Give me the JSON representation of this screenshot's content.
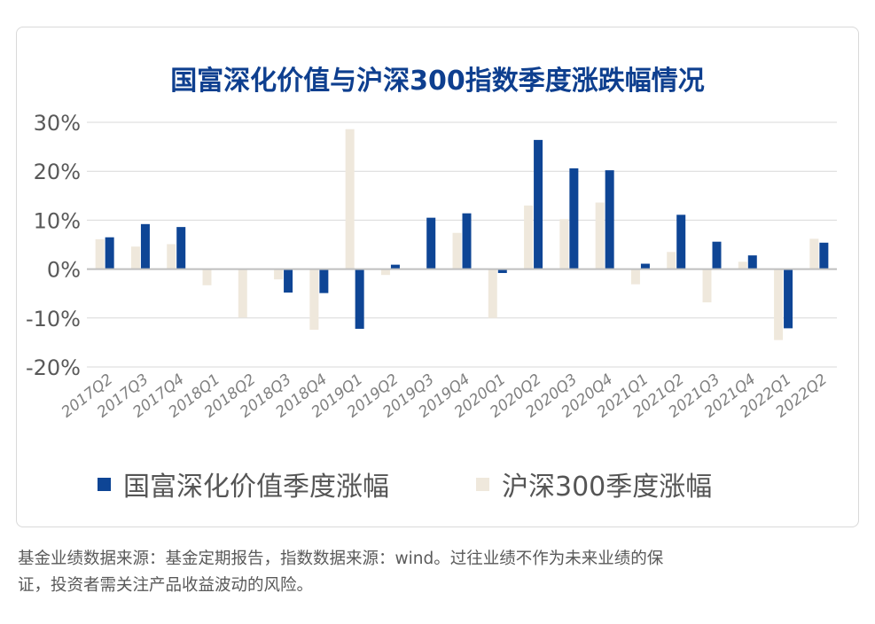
{
  "chart_data": {
    "type": "bar",
    "title": "国富深化价值与沪深300指数季度涨跌幅情况",
    "categories": [
      "2017Q2",
      "2017Q3",
      "2017Q4",
      "2018Q1",
      "2018Q2",
      "2018Q3",
      "2018Q4",
      "2019Q1",
      "2019Q2",
      "2019Q3",
      "2019Q4",
      "2020Q1",
      "2020Q2",
      "2020Q3",
      "2020Q4",
      "2021Q1",
      "2021Q2",
      "2021Q3",
      "2021Q4",
      "2022Q1",
      "2022Q2"
    ],
    "series": [
      {
        "name": "国富深化价值季度涨幅",
        "color": "#0e4595",
        "values": [
          6.5,
          9.2,
          8.6,
          0,
          0,
          -4.8,
          -4.9,
          -12.2,
          0.9,
          10.5,
          11.4,
          -0.8,
          26.4,
          20.6,
          20.2,
          1.1,
          11.1,
          5.6,
          2.8,
          -12.1,
          5.4
        ]
      },
      {
        "name": "沪深300季度涨幅",
        "color": "#efe8dc",
        "values": [
          6.1,
          4.6,
          5.1,
          -3.3,
          -9.9,
          -2.1,
          -12.4,
          28.6,
          -1.2,
          0,
          7.4,
          -10.0,
          13.0,
          10.2,
          13.6,
          -3.1,
          3.5,
          -6.8,
          1.5,
          -14.5,
          6.2
        ]
      }
    ],
    "y_ticks": [
      "30%",
      "20%",
      "10%",
      "0%",
      "-10%",
      "-20%"
    ],
    "ylim": [
      -20,
      30
    ],
    "grid": true,
    "legend_position": "bottom"
  },
  "footnote": {
    "line1": "基金业绩数据来源：基金定期报告，指数数据来源：wind。过往业绩不作为未来业绩的保",
    "line2": "证，投资者需关注产品收益波动的风险。"
  }
}
